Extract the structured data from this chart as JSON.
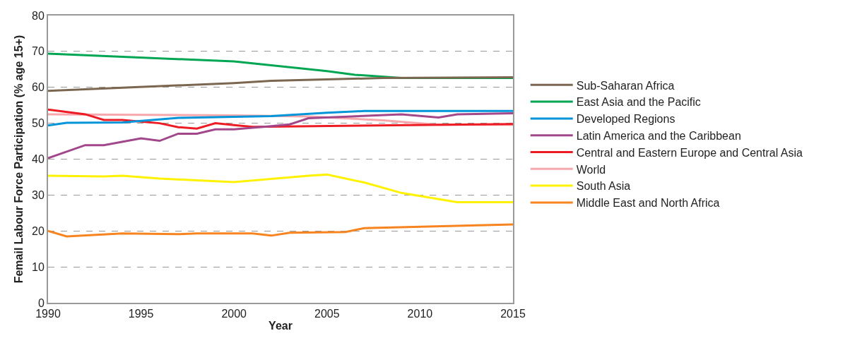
{
  "chart_data": {
    "type": "line",
    "xlabel": "Year",
    "ylabel": "Femail Labour Force Participation (% age 15+)",
    "xlim": [
      1990,
      2015
    ],
    "xticks": [
      1990,
      1995,
      2000,
      2005,
      2010,
      2015
    ],
    "ylim": [
      0,
      80
    ],
    "yticks": [
      0,
      10,
      20,
      30,
      40,
      50,
      60,
      70,
      80
    ],
    "grid": "y",
    "legend": "right",
    "marker": "none",
    "line_style": "solid",
    "series": [
      {
        "name": "Sub-Saharan Africa",
        "color": "#7b6650",
        "x": [
          1990,
          2000,
          2002,
          2008,
          2015
        ],
        "values": [
          59.0,
          61.2,
          61.8,
          62.6,
          62.8
        ]
      },
      {
        "name": "East Asia and the Pacific",
        "color": "#00a651",
        "x": [
          1990,
          2000,
          2005,
          2006.5,
          2009,
          2015
        ],
        "values": [
          69.4,
          67.2,
          64.5,
          63.5,
          62.6,
          62.6
        ]
      },
      {
        "name": "Developed Regions",
        "color": "#0094d9",
        "x": [
          1990,
          1991,
          1994,
          1997,
          2002,
          2005,
          2007,
          2015
        ],
        "values": [
          49.4,
          50.1,
          50.2,
          51.5,
          52.0,
          52.9,
          53.4,
          53.4
        ]
      },
      {
        "name": "Latin America and the Caribbean",
        "color": "#a2478a",
        "x": [
          1990,
          1992,
          1993,
          1995,
          1996,
          1997,
          1998,
          1999,
          2000,
          2002,
          2003,
          2004,
          2009,
          2011,
          2012,
          2015
        ],
        "values": [
          40.3,
          43.9,
          43.9,
          45.8,
          45.1,
          47.1,
          47.1,
          48.3,
          48.3,
          49.2,
          49.7,
          51.4,
          52.5,
          51.6,
          52.5,
          52.8
        ]
      },
      {
        "name": "Central and Eastern Europe and Central Asia",
        "color": "#ed1c24",
        "x": [
          1990,
          1992,
          1993,
          1994,
          1996,
          1997,
          1998,
          1999,
          2000,
          2001,
          2015
        ],
        "values": [
          53.8,
          52.5,
          50.9,
          50.9,
          50.0,
          48.9,
          48.5,
          50.0,
          49.5,
          49.0,
          49.8
        ]
      },
      {
        "name": "World",
        "color": "#f7a8ad",
        "x": [
          1990,
          2000,
          2004,
          2008,
          2011,
          2015
        ],
        "values": [
          52.5,
          52.2,
          51.9,
          50.8,
          49.6,
          49.6
        ]
      },
      {
        "name": "South Asia",
        "color": "#fff200",
        "x": [
          1990,
          1993,
          1994,
          1996,
          1998,
          2000,
          2004,
          2005,
          2007,
          2009,
          2012,
          2015
        ],
        "values": [
          35.4,
          35.2,
          35.4,
          34.6,
          34.1,
          33.6,
          35.4,
          35.7,
          33.5,
          30.6,
          28.0,
          28.0
        ]
      },
      {
        "name": "Middle East and North Africa",
        "color": "#f7841e",
        "x": [
          1990,
          1991,
          1994,
          1997,
          1998,
          2001,
          2002,
          2003,
          2006,
          2007,
          2015
        ],
        "values": [
          20.0,
          18.5,
          19.3,
          19.1,
          19.3,
          19.3,
          18.7,
          19.5,
          19.7,
          20.8,
          21.8
        ]
      }
    ]
  }
}
